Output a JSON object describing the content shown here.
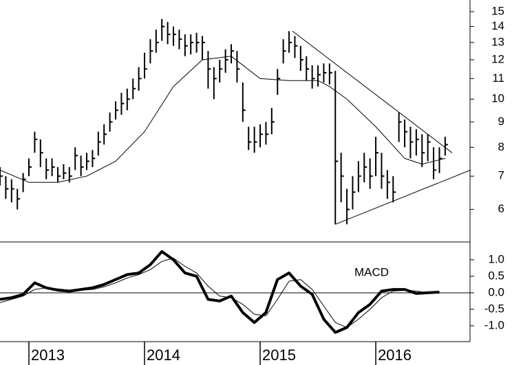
{
  "chart_data": [
    {
      "type": "ohlc",
      "log_scale": true,
      "color": "#000000",
      "xlim": [
        2012.75,
        2016.815
      ],
      "ylim": [
        5.16,
        15.83
      ],
      "yticks": [
        6,
        7,
        8,
        9,
        10,
        11,
        12,
        13,
        14,
        15
      ],
      "x": [
        2012.75,
        2012.8,
        2012.85,
        2012.9,
        2012.95,
        2013.0,
        2013.05,
        2013.1,
        2013.15,
        2013.2,
        2013.25,
        2013.3,
        2013.35,
        2013.4,
        2013.45,
        2013.5,
        2013.55,
        2013.6,
        2013.65,
        2013.7,
        2013.75,
        2013.8,
        2013.85,
        2013.9,
        2013.95,
        2014.0,
        2014.05,
        2014.1,
        2014.15,
        2014.2,
        2014.25,
        2014.3,
        2014.35,
        2014.4,
        2014.45,
        2014.5,
        2014.55,
        2014.6,
        2014.65,
        2014.7,
        2014.75,
        2014.8,
        2014.85,
        2014.9,
        2014.95,
        2015.0,
        2015.05,
        2015.1,
        2015.15,
        2015.2,
        2015.25,
        2015.3,
        2015.35,
        2015.4,
        2015.45,
        2015.5,
        2015.55,
        2015.6,
        2015.65,
        2015.7,
        2015.75,
        2015.8,
        2015.85,
        2015.9,
        2015.95,
        2016.0,
        2016.05,
        2016.1,
        2016.15,
        2016.2,
        2016.25,
        2016.3,
        2016.35,
        2016.4,
        2016.45,
        2016.5,
        2016.55,
        2016.6
      ],
      "high": [
        7.3,
        7.0,
        6.9,
        6.6,
        7.1,
        7.6,
        8.6,
        8.3,
        7.6,
        7.6,
        7.3,
        7.4,
        7.3,
        8.0,
        7.7,
        7.8,
        7.9,
        8.6,
        8.9,
        9.4,
        9.9,
        10.3,
        10.5,
        11.0,
        11.6,
        12.4,
        13.2,
        13.8,
        14.5,
        14.3,
        14.0,
        13.8,
        13.5,
        13.5,
        13.6,
        13.4,
        12.5,
        11.6,
        12.0,
        12.6,
        12.9,
        12.5,
        10.8,
        8.8,
        8.8,
        8.9,
        9.0,
        9.6,
        11.5,
        13.2,
        13.7,
        13.4,
        12.8,
        12.2,
        11.7,
        11.7,
        11.8,
        11.8,
        11.4,
        7.8,
        6.6,
        7.0,
        7.5,
        7.8,
        7.6,
        8.4,
        7.8,
        7.2,
        7.0,
        9.4,
        9.1,
        8.8,
        8.7,
        8.5,
        8.5,
        8.0,
        8.0,
        8.4
      ],
      "low": [
        6.7,
        6.3,
        6.2,
        6.0,
        6.5,
        7.0,
        7.8,
        7.3,
        6.9,
        7.0,
        6.8,
        6.9,
        6.8,
        7.2,
        7.0,
        7.2,
        7.3,
        7.7,
        8.1,
        8.6,
        9.1,
        9.3,
        9.5,
        10.0,
        10.4,
        11.0,
        11.8,
        12.4,
        13.1,
        12.9,
        12.8,
        12.6,
        12.2,
        12.3,
        12.4,
        12.0,
        10.5,
        10.0,
        10.8,
        11.3,
        11.8,
        10.8,
        9.0,
        7.9,
        7.8,
        8.0,
        8.1,
        8.5,
        10.2,
        11.8,
        12.4,
        12.1,
        11.4,
        10.9,
        10.5,
        10.6,
        10.8,
        10.7,
        5.6,
        6.2,
        5.6,
        6.0,
        6.5,
        6.8,
        6.6,
        7.0,
        6.6,
        6.3,
        6.2,
        8.2,
        8.0,
        7.6,
        7.7,
        7.3,
        7.5,
        6.9,
        7.1,
        7.7
      ],
      "close": [
        7.0,
        6.6,
        6.6,
        6.3,
        6.9,
        7.3,
        8.3,
        7.8,
        7.2,
        7.3,
        7.0,
        7.1,
        7.0,
        7.7,
        7.3,
        7.5,
        7.6,
        8.2,
        8.5,
        9.0,
        9.5,
        9.8,
        10.0,
        10.5,
        11.0,
        11.5,
        12.5,
        13.0,
        14.0,
        13.5,
        13.5,
        13.2,
        12.8,
        13.0,
        13.0,
        13.0,
        11.5,
        11.0,
        11.5,
        12.0,
        12.5,
        11.5,
        9.5,
        8.2,
        8.2,
        8.5,
        8.5,
        9.0,
        11.0,
        12.5,
        13.0,
        12.8,
        12.0,
        11.5,
        11.0,
        11.2,
        11.3,
        11.3,
        7.5,
        7.0,
        6.0,
        6.5,
        7.0,
        7.3,
        7.0,
        7.8,
        7.0,
        6.8,
        6.5,
        9.0,
        8.6,
        8.2,
        8.3,
        7.8,
        8.2,
        7.2,
        7.6,
        8.1
      ],
      "moving_average": {
        "x": [
          2012.75,
          2013.0,
          2013.25,
          2013.5,
          2013.75,
          2014.0,
          2014.25,
          2014.5,
          2014.75,
          2015.0,
          2015.25,
          2015.5,
          2015.6,
          2015.75,
          2016.0,
          2016.25,
          2016.4,
          2016.6
        ],
        "values": [
          7.2,
          6.8,
          6.8,
          7.0,
          7.5,
          8.6,
          10.6,
          12.0,
          12.2,
          11.0,
          10.9,
          10.9,
          10.6,
          10.0,
          8.8,
          7.6,
          7.4,
          7.6
        ]
      },
      "trendlines": [
        {
          "x": [
            2015.28,
            2016.66
          ],
          "values": [
            13.7,
            7.8
          ]
        },
        {
          "x": [
            2015.65,
            2016.82
          ],
          "values": [
            5.6,
            7.2
          ]
        }
      ]
    },
    {
      "type": "line",
      "title": "MACD",
      "zero_line": true,
      "xlim": [
        2012.75,
        2016.815
      ],
      "ylim": [
        -1.48,
        1.54
      ],
      "xticks": [
        2013,
        2014,
        2015,
        2016
      ],
      "yticks": [
        {
          "value": 1.0,
          "label": "1.0"
        },
        0.5,
        {
          "value": 0.0,
          "label": "0.0"
        },
        -0.5,
        {
          "value": -1.0,
          "label": "-1.0"
        }
      ],
      "x": [
        2012.75,
        2012.85,
        2012.95,
        2013.05,
        2013.15,
        2013.25,
        2013.35,
        2013.45,
        2013.55,
        2013.65,
        2013.75,
        2013.85,
        2013.95,
        2014.05,
        2014.15,
        2014.25,
        2014.35,
        2014.45,
        2014.55,
        2014.65,
        2014.75,
        2014.85,
        2014.95,
        2015.05,
        2015.15,
        2015.25,
        2015.35,
        2015.45,
        2015.55,
        2015.65,
        2015.75,
        2015.85,
        2015.95,
        2016.05,
        2016.15,
        2016.25,
        2016.35,
        2016.45,
        2016.55
      ],
      "series": [
        {
          "color": "#000000",
          "width": 4,
          "values": [
            -0.2,
            -0.15,
            -0.05,
            0.3,
            0.15,
            0.08,
            0.05,
            0.1,
            0.15,
            0.25,
            0.4,
            0.55,
            0.6,
            0.85,
            1.25,
            1.0,
            0.6,
            0.5,
            -0.2,
            -0.25,
            -0.1,
            -0.6,
            -0.9,
            -0.6,
            0.4,
            0.6,
            0.2,
            -0.05,
            -0.8,
            -1.2,
            -1.05,
            -0.6,
            -0.35,
            0.05,
            0.1,
            0.1,
            -0.02,
            0.0,
            0.02
          ]
        },
        {
          "color": "#000000",
          "width": 1,
          "values": [
            -0.3,
            -0.2,
            -0.1,
            0.1,
            0.15,
            0.12,
            0.08,
            0.08,
            0.1,
            0.18,
            0.3,
            0.45,
            0.55,
            0.7,
            0.95,
            1.05,
            0.8,
            0.6,
            0.2,
            -0.1,
            -0.15,
            -0.35,
            -0.65,
            -0.7,
            -0.2,
            0.35,
            0.4,
            0.1,
            -0.4,
            -0.9,
            -1.05,
            -0.8,
            -0.5,
            -0.15,
            0.05,
            0.08,
            0.05,
            0.0,
            0.01
          ]
        }
      ]
    }
  ]
}
